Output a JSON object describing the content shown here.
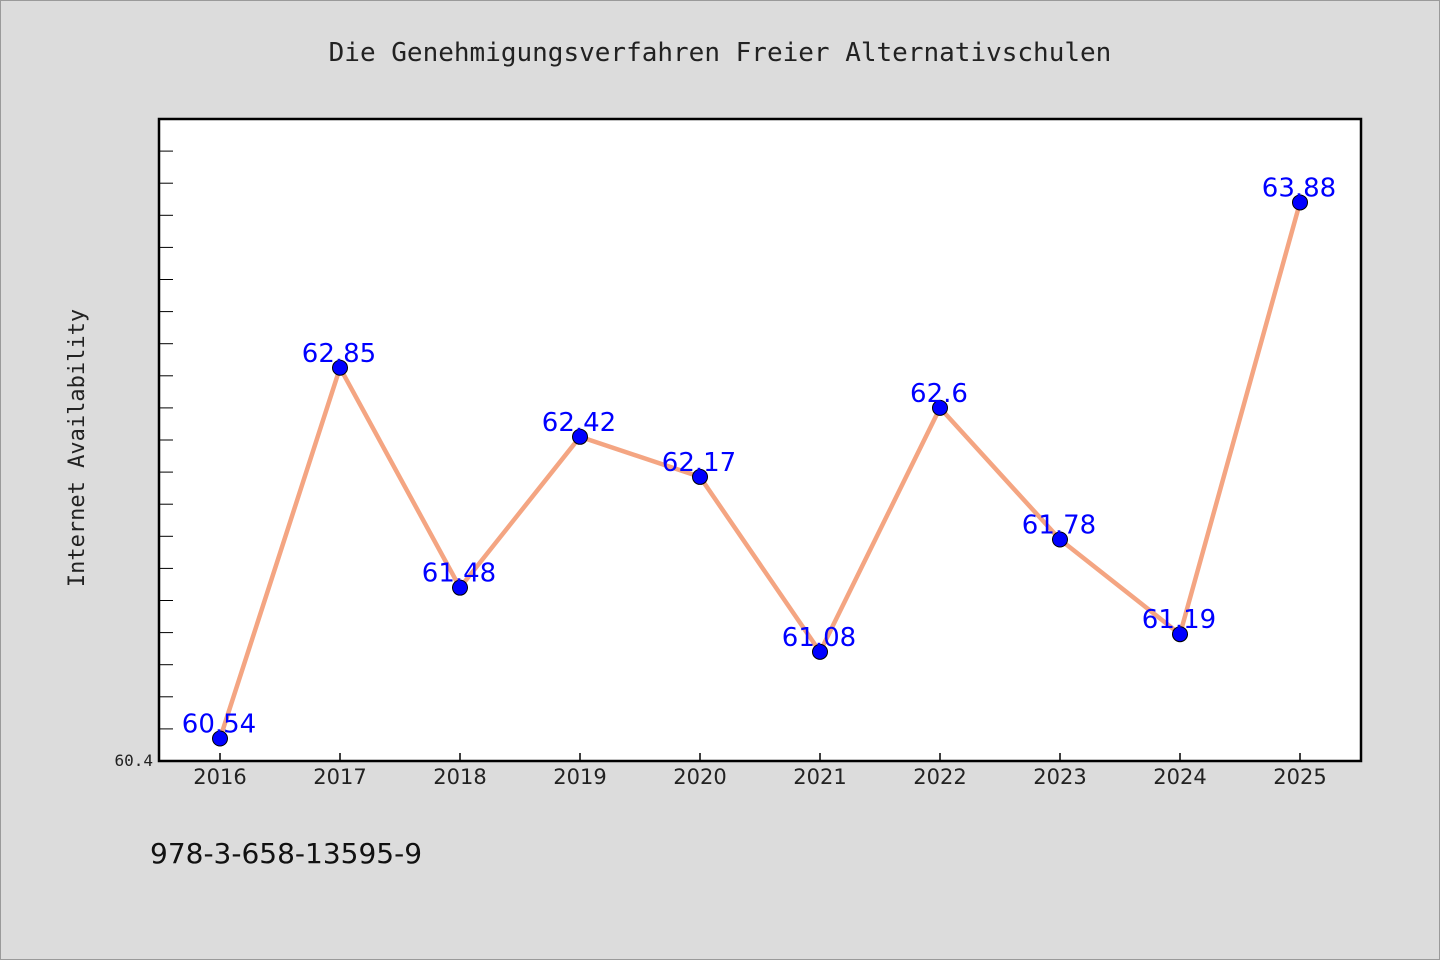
{
  "chart_data": {
    "type": "line",
    "title": "Die Genehmigungsverfahren Freier Alternativschulen",
    "xlabel": "",
    "ylabel": "Internet Availability",
    "categories": [
      "2016",
      "2017",
      "2018",
      "2019",
      "2020",
      "2021",
      "2022",
      "2023",
      "2024",
      "2025"
    ],
    "series": [
      {
        "values": [
          60.54,
          62.85,
          61.48,
          62.42,
          62.17,
          61.08,
          62.6,
          61.78,
          61.19,
          63.88
        ],
        "data_labels": [
          "60.54",
          "62.85",
          "61.48",
          "62.42",
          "62.17",
          "61.08",
          "62.6",
          "61.78",
          "61.19",
          "63.88"
        ],
        "line_color": "#f4a582",
        "marker_color": "#0000ff"
      }
    ],
    "y_tick_labels": [
      "60.4"
    ],
    "ylim": [
      60.4,
      64.4
    ],
    "grid": false,
    "legend": "none"
  },
  "footer": {
    "isbn": "978-3-658-13595-9"
  },
  "colors": {
    "background": "#dcdcdc",
    "plot_background": "#ffffff",
    "line": "#f4a582",
    "marker": "#0000ff",
    "data_label": "#0000ff"
  }
}
